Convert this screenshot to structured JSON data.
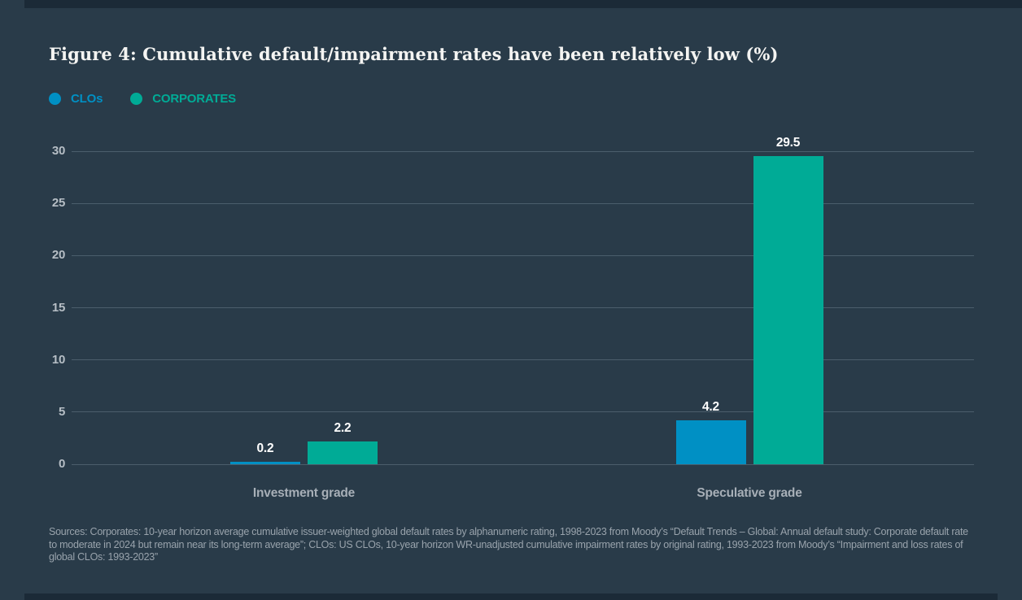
{
  "page": {
    "title": "Figure 4: Cumulative default/impairment rates have been relatively low (%)",
    "source_note": "Sources: Corporates: 10-year horizon average cumulative issuer-weighted global default rates by alphanumeric rating, 1998-2023 from Moody’s “Default Trends – Global: Annual default study: Corporate default rate to moderate in 2024 but remain near its long-term average”; CLOs: US CLOs, 10-year horizon WR-unadjusted cumulative impairment rates by original rating, 1993-2023 from Moody’s “Impairment and loss rates of global CLOs: 1993-2023”"
  },
  "colors": {
    "background": "#293B49",
    "border_band": "#1B2A37",
    "clo_blue": "#0090C4",
    "corporate_teal": "#00AB96",
    "grid": "rgba(165,185,200,0.28)",
    "value_label": "#FFFFFF",
    "axis_label": "#B6BEC5",
    "category_label": "#A7AFB7"
  },
  "legend": {
    "items": [
      {
        "label": "CLOs",
        "color": "#0090C4"
      },
      {
        "label": "CORPORATES",
        "color": "#00AB96"
      }
    ]
  },
  "chart_data": {
    "type": "bar",
    "title": "Figure 4: Cumulative default/impairment rates have been relatively low (%)",
    "categories": [
      "Investment grade",
      "Speculative grade"
    ],
    "series": [
      {
        "name": "CLOs",
        "color": "#0090C4",
        "values": [
          0.2,
          4.2
        ]
      },
      {
        "name": "CORPORATES",
        "color": "#00AB96",
        "values": [
          2.2,
          29.5
        ]
      }
    ],
    "value_labels": [
      [
        "0.2",
        "4.2"
      ],
      [
        "2.2",
        "29.5"
      ]
    ],
    "xlabel": "",
    "ylabel": "",
    "ylim": [
      0,
      30
    ],
    "yticks": [
      0,
      5,
      10,
      15,
      20,
      25,
      30
    ],
    "grid": true,
    "legend_position": "top-left",
    "unit": "%"
  }
}
